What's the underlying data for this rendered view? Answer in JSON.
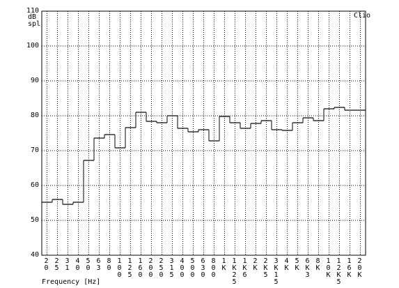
{
  "chart_data": {
    "type": "step",
    "y_label": "dB spl",
    "x_label": "Frequency [Hz]",
    "annotation": "Clio",
    "categories": [
      "20",
      "25",
      "31",
      "40",
      "50",
      "63",
      "80",
      "100",
      "125",
      "160",
      "200",
      "250",
      "315",
      "400",
      "500",
      "630",
      "800",
      "1K",
      "1K25",
      "1K6",
      "2K",
      "2K5",
      "3K15",
      "4K",
      "5K",
      "6K3",
      "8K",
      "10K",
      "12K5",
      "16K",
      "20K"
    ],
    "values": [
      55.2,
      56,
      54.6,
      55.2,
      67.2,
      73.6,
      74.6,
      70.8,
      76.6,
      81,
      78.4,
      78,
      80,
      76.4,
      75.4,
      76,
      72.8,
      79.8,
      78,
      76.4,
      77.8,
      78.6,
      76,
      75.8,
      78,
      79.4,
      78.6,
      82,
      82.4,
      81.6,
      81.6
    ],
    "color": "#000000",
    "ylim": [
      40,
      110
    ],
    "yticks": [
      40,
      50,
      60,
      70,
      80,
      90,
      100,
      110
    ],
    "grid": true
  }
}
